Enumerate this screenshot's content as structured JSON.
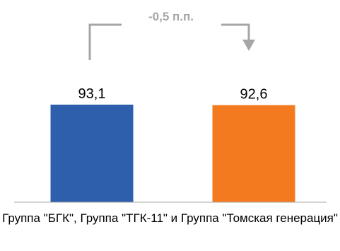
{
  "chart_data": {
    "type": "bar",
    "categories": [
      "Группа \"БГК\", Группа \"ТГК-11\" и Группа \"Томская генерация\""
    ],
    "series": [
      {
        "values": [
          93.1
        ],
        "value_labels": [
          "93,1"
        ],
        "color": "#2e5fac"
      },
      {
        "values": [
          92.6
        ],
        "value_labels": [
          "92,6"
        ],
        "color": "#f47a20"
      }
    ],
    "delta_label": "-0,5 п.п.",
    "colors": {
      "bracket": "#a6a6a6",
      "axis": "#a6a6a6"
    }
  }
}
